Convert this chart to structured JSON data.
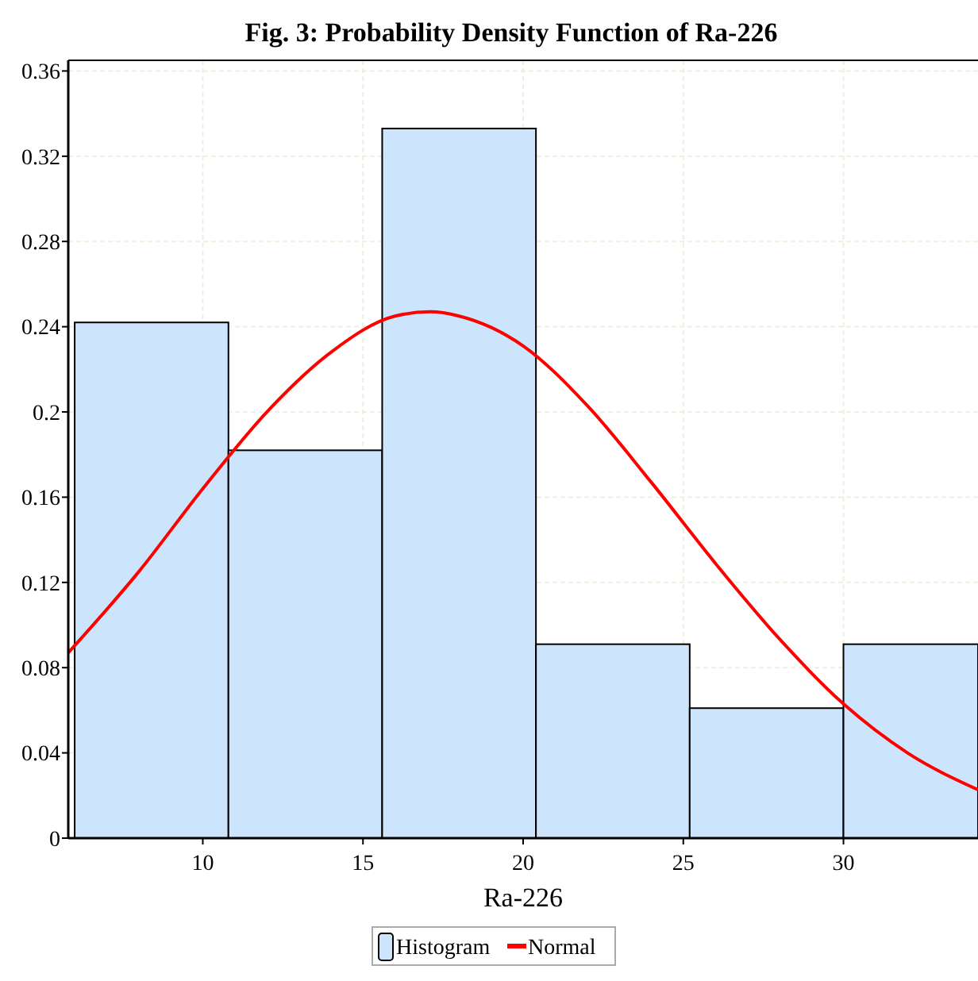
{
  "chart_data": {
    "type": "histogram",
    "title": "Fig. 3: Probability Density Function of Ra-226",
    "xlabel": "Ra-226",
    "bins": [
      6.0,
      10.8,
      15.6,
      20.4,
      25.2,
      30.0,
      34.2
    ],
    "series": [
      {
        "name": "Histogram",
        "color": "#cce5fc",
        "values": [
          0.242,
          0.182,
          0.333,
          0.091,
          0.061,
          0.091
        ]
      },
      {
        "name": "Normal",
        "type": "line",
        "color": "#ff0000",
        "x": [
          5.8,
          8,
          10,
          12,
          14,
          16,
          17.1,
          18,
          20,
          22,
          24,
          26,
          28,
          30,
          32,
          34.2
        ],
        "values": [
          0.087,
          0.125,
          0.164,
          0.2,
          0.228,
          0.245,
          0.247,
          0.245,
          0.231,
          0.203,
          0.167,
          0.129,
          0.0935,
          0.063,
          0.04,
          0.0227
        ]
      }
    ],
    "xlim": [
      5.8,
      34.2
    ],
    "xticks": [
      10,
      15,
      20,
      25,
      30
    ],
    "ylim": [
      0,
      0.365
    ],
    "yticks": [
      0,
      0.04,
      0.08,
      0.12,
      0.16,
      0.2,
      0.24,
      0.28,
      0.32,
      0.36
    ],
    "grid": true,
    "legend": "bottom",
    "line_style": "solid",
    "marker": "none"
  }
}
